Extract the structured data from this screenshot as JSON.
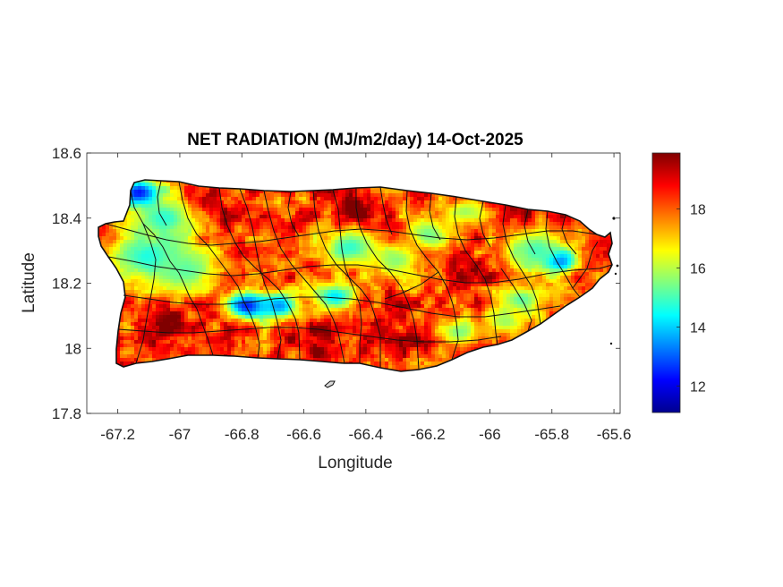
{
  "chart_data": {
    "type": "heatmap",
    "title": "NET RADIATION (MJ/m2/day) 14-Oct-2025",
    "xlabel": "Longitude",
    "ylabel": "Latitude",
    "xlim": [
      -67.3,
      -65.58
    ],
    "ylim": [
      17.8,
      18.6
    ],
    "x_ticks": [
      -67.2,
      -67,
      -66.8,
      -66.6,
      -66.4,
      -66.2,
      -66,
      -65.8,
      -65.6
    ],
    "x_tick_labels": [
      "-67.2",
      "-67",
      "-66.8",
      "-66.6",
      "-66.4",
      "-66.2",
      "-66",
      "-65.8",
      "-65.6"
    ],
    "y_ticks": [
      17.8,
      18,
      18.2,
      18.4,
      18.6
    ],
    "y_tick_labels": [
      "17.8",
      "18",
      "18.2",
      "18.4",
      "18.6"
    ],
    "colorbar": {
      "colormap": "jet",
      "range": [
        11.1,
        19.9
      ],
      "ticks": [
        12,
        14,
        16,
        18
      ],
      "tick_labels": [
        "12",
        "14",
        "16",
        "18"
      ]
    },
    "grid": false,
    "region": "Puerto Rico (municipality boundaries)",
    "field_summary": {
      "typical_range": [
        16,
        19.9
      ],
      "low_zones": [
        {
          "lon": -67.12,
          "lat": 18.47,
          "value": 12
        },
        {
          "lon": -66.78,
          "lat": 18.13,
          "value": 12.5
        },
        {
          "lon": -65.78,
          "lat": 18.27,
          "value": 12
        },
        {
          "lon": -67.1,
          "lat": 18.28,
          "value": 14
        },
        {
          "lon": -66.45,
          "lat": 18.3,
          "value": 14.5
        },
        {
          "lon": -66.2,
          "lat": 18.35,
          "value": 15
        }
      ]
    }
  }
}
